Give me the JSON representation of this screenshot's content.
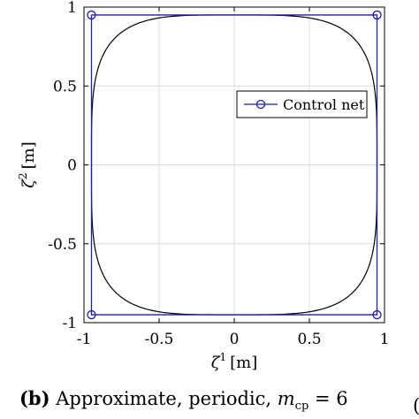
{
  "chart_data": {
    "type": "line",
    "xlabel_symbol": "ζ",
    "xlabel_sup": "1",
    "xlabel_unit": "[m]",
    "ylabel_symbol": "ζ",
    "ylabel_sup": "2",
    "ylabel_unit": "[m]",
    "xlim": [
      -1,
      1
    ],
    "ylim": [
      -1,
      1
    ],
    "xticks": [
      -1,
      -0.5,
      0,
      0.5,
      1
    ],
    "yticks": [
      -1,
      -0.5,
      0,
      0.5,
      1
    ],
    "xtick_labels": [
      "-1",
      "-0.5",
      "0",
      "0.5",
      "1"
    ],
    "ytick_labels": [
      "-1",
      "-0.5",
      "0",
      "0.5",
      "1"
    ],
    "grid": true,
    "legend_placement": "right-upper",
    "series": [
      {
        "name": "",
        "style": "curve",
        "color": "#000000",
        "shape": "superellipse",
        "radius": 0.95,
        "exponent": 4
      },
      {
        "name": "Control net",
        "style": "line-markers",
        "color": "#1f1fa8",
        "x": [
          -0.95,
          0.95,
          0.95,
          -0.95,
          -0.95
        ],
        "y": [
          0.95,
          0.95,
          -0.95,
          -0.95,
          0.95
        ]
      }
    ]
  },
  "caption": {
    "label": "(b)",
    "text": "Approximate, periodic,",
    "var": "m",
    "sub": "cp",
    "rest": "= 6",
    "edge_fragment": "("
  }
}
